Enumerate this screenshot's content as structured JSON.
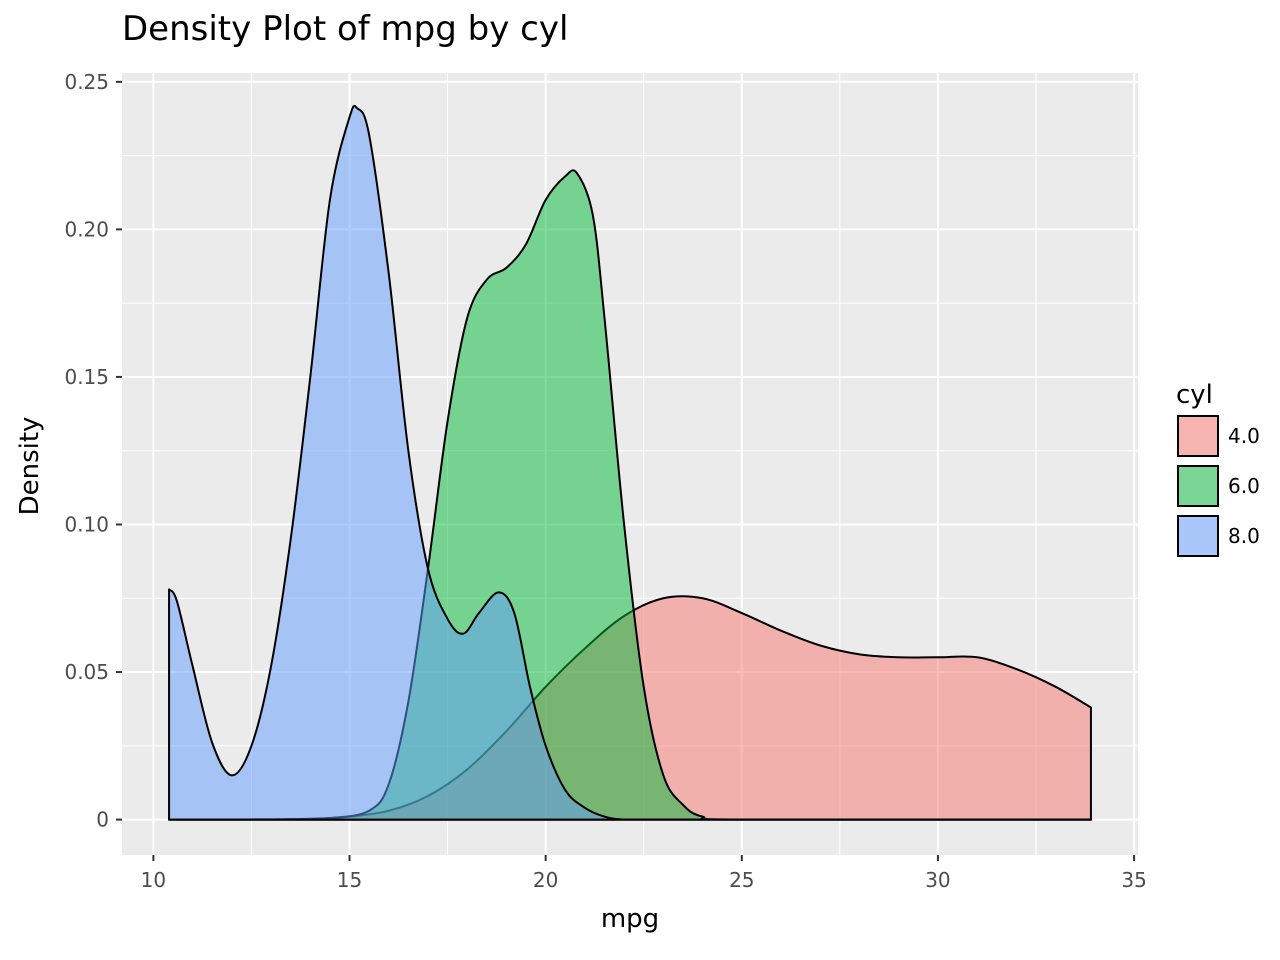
{
  "chart_data": {
    "type": "area",
    "title": "Density Plot of mpg by cyl",
    "xlabel": "mpg",
    "ylabel": "Density",
    "xlim": [
      9.2,
      35.1
    ],
    "ylim": [
      -0.012,
      0.253
    ],
    "xticks": [
      10,
      15,
      20,
      25,
      30,
      35
    ],
    "xtick_labels": [
      "10",
      "15",
      "20",
      "25",
      "30",
      "35"
    ],
    "yticks": [
      0,
      0.05,
      0.1,
      0.15,
      0.2,
      0.25
    ],
    "ytick_labels": [
      "0",
      "0.05",
      "0.10",
      "0.15",
      "0.20",
      "0.25"
    ],
    "grid": true,
    "legend": {
      "title": "cyl",
      "position": "right"
    },
    "series": [
      {
        "name": "4.0",
        "color": "#F8766D",
        "x": [
          10.4,
          12,
          14,
          15,
          16,
          17,
          18,
          19,
          20,
          21,
          22,
          23,
          24,
          25,
          26,
          27,
          28,
          29,
          30,
          31,
          32,
          33,
          33.9
        ],
        "y": [
          0,
          0,
          0.0003,
          0.001,
          0.003,
          0.008,
          0.017,
          0.03,
          0.045,
          0.058,
          0.069,
          0.075,
          0.075,
          0.07,
          0.064,
          0.059,
          0.056,
          0.055,
          0.055,
          0.055,
          0.051,
          0.045,
          0.038
        ]
      },
      {
        "name": "6.0",
        "color": "#00BA38",
        "x": [
          10.4,
          13,
          14.5,
          15.5,
          16,
          16.5,
          17,
          17.5,
          18,
          18.5,
          19,
          19.5,
          20,
          20.5,
          20.8,
          21.2,
          21.5,
          22,
          22.5,
          23,
          23.5,
          24,
          25,
          33.9
        ],
        "y": [
          0,
          0,
          0.0005,
          0.003,
          0.012,
          0.04,
          0.085,
          0.135,
          0.17,
          0.183,
          0.187,
          0.195,
          0.21,
          0.218,
          0.219,
          0.205,
          0.17,
          0.1,
          0.045,
          0.015,
          0.005,
          0.001,
          0,
          0
        ]
      },
      {
        "name": "8.0",
        "color": "#619CFF",
        "x": [
          10.4,
          10.6,
          11,
          11.5,
          12,
          12.5,
          13,
          13.5,
          14,
          14.5,
          15,
          15.2,
          15.5,
          16,
          16.5,
          17,
          17.5,
          17.9,
          18.3,
          18.8,
          19.2,
          19.6,
          20,
          20.5,
          21,
          21.5,
          22,
          23,
          33.9
        ],
        "y": [
          0.078,
          0.074,
          0.052,
          0.026,
          0.015,
          0.025,
          0.052,
          0.095,
          0.15,
          0.21,
          0.238,
          0.241,
          0.232,
          0.185,
          0.125,
          0.085,
          0.068,
          0.063,
          0.07,
          0.077,
          0.07,
          0.045,
          0.025,
          0.01,
          0.004,
          0.001,
          0,
          0,
          0
        ]
      }
    ]
  }
}
